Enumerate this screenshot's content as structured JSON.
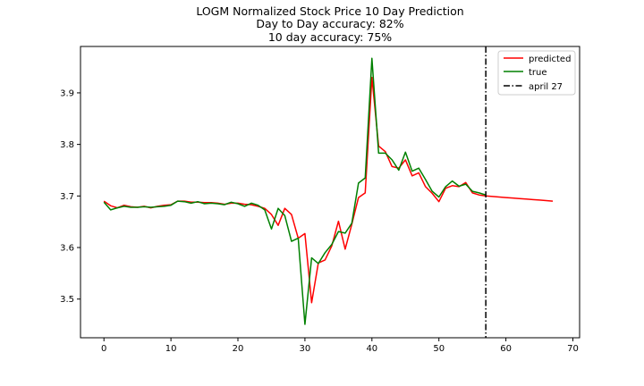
{
  "chart_data": {
    "type": "line",
    "title": "LOGM Normalized Stock Price 10 Day Prediction",
    "subtitle_lines": [
      "Day to Day accuracy: 82%",
      "10 day accuracy: 75%"
    ],
    "xlabel": "",
    "ylabel": "",
    "xlim": [
      -3.5,
      71
    ],
    "ylim": [
      3.425,
      3.99
    ],
    "xticks": [
      0,
      10,
      20,
      30,
      40,
      50,
      60,
      70
    ],
    "yticks": [
      3.5,
      3.6,
      3.7,
      3.8,
      3.9
    ],
    "ytick_labels": [
      "3.5",
      "3.6",
      "3.7",
      "3.8",
      "3.9"
    ],
    "grid": false,
    "legend_position": "top-right",
    "vline": {
      "label": "april 27",
      "x": 57,
      "color": "#000000",
      "style": "dashdot"
    },
    "series": [
      {
        "name": "predicted",
        "color": "#ff0000",
        "x": [
          0,
          1,
          2,
          3,
          4,
          5,
          6,
          7,
          8,
          9,
          10,
          11,
          12,
          13,
          14,
          15,
          16,
          17,
          18,
          19,
          20,
          21,
          22,
          23,
          24,
          25,
          26,
          27,
          28,
          29,
          30,
          31,
          32,
          33,
          34,
          35,
          36,
          37,
          38,
          39,
          40,
          41,
          42,
          43,
          44,
          45,
          46,
          47,
          48,
          49,
          50,
          51,
          52,
          53,
          54,
          55,
          56,
          57,
          58,
          59,
          60,
          61,
          62,
          63,
          64,
          65,
          66,
          67
        ],
        "y": [
          3.69,
          3.681,
          3.677,
          3.682,
          3.679,
          3.678,
          3.68,
          3.677,
          3.68,
          3.682,
          3.683,
          3.69,
          3.69,
          3.688,
          3.688,
          3.687,
          3.687,
          3.686,
          3.684,
          3.686,
          3.686,
          3.684,
          3.683,
          3.68,
          3.676,
          3.664,
          3.643,
          3.676,
          3.664,
          3.618,
          3.627,
          3.493,
          3.57,
          3.576,
          3.603,
          3.651,
          3.597,
          3.645,
          3.697,
          3.706,
          3.93,
          3.797,
          3.786,
          3.757,
          3.754,
          3.77,
          3.739,
          3.745,
          3.718,
          3.705,
          3.689,
          3.715,
          3.72,
          3.718,
          3.726,
          3.706,
          3.702,
          3.7,
          3.699,
          3.698,
          3.697,
          3.696,
          3.695,
          3.694,
          3.693,
          3.692,
          3.691,
          3.69
        ]
      },
      {
        "name": "true",
        "color": "#008000",
        "x": [
          0,
          1,
          2,
          3,
          4,
          5,
          6,
          7,
          8,
          9,
          10,
          11,
          12,
          13,
          14,
          15,
          16,
          17,
          18,
          19,
          20,
          21,
          22,
          23,
          24,
          25,
          26,
          27,
          28,
          29,
          30,
          31,
          32,
          33,
          34,
          35,
          36,
          37,
          38,
          39,
          40,
          41,
          42,
          43,
          44,
          45,
          46,
          47,
          48,
          49,
          50,
          51,
          52,
          53,
          54,
          55,
          56,
          57
        ],
        "y": [
          3.688,
          3.673,
          3.677,
          3.68,
          3.678,
          3.678,
          3.679,
          3.678,
          3.679,
          3.68,
          3.682,
          3.69,
          3.689,
          3.686,
          3.689,
          3.685,
          3.686,
          3.685,
          3.683,
          3.688,
          3.685,
          3.68,
          3.686,
          3.682,
          3.673,
          3.636,
          3.676,
          3.662,
          3.612,
          3.618,
          3.451,
          3.58,
          3.569,
          3.59,
          3.606,
          3.631,
          3.628,
          3.647,
          3.725,
          3.735,
          3.967,
          3.783,
          3.783,
          3.77,
          3.75,
          3.785,
          3.748,
          3.754,
          3.732,
          3.709,
          3.698,
          3.718,
          3.729,
          3.719,
          3.723,
          3.709,
          3.706,
          3.702
        ]
      }
    ]
  }
}
